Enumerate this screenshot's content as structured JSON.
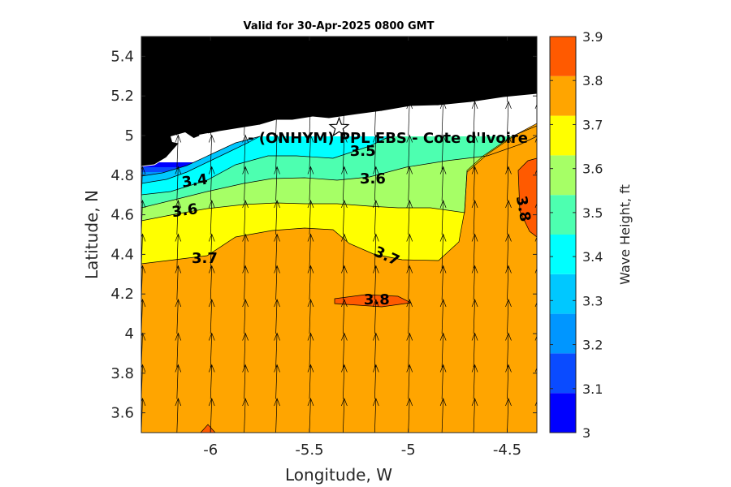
{
  "chart_data": {
    "type": "contour",
    "title": "Valid for 30-Apr-2025 0800 GMT",
    "xlabel": "Longitude, W",
    "ylabel": "Latitude, N",
    "xlim": [
      -6.35,
      -4.35
    ],
    "ylim": [
      3.5,
      5.5
    ],
    "xticks": [
      -6,
      -5.5,
      -5,
      -4.5
    ],
    "xtick_labels": [
      "-6",
      "-5.5",
      "-5",
      "-4.5"
    ],
    "yticks": [
      3.6,
      3.8,
      4.0,
      4.2,
      4.4,
      4.6,
      4.8,
      5.0,
      5.2,
      5.4
    ],
    "ytick_labels": [
      "3.6",
      "3.8",
      "4",
      "4.2",
      "4.4",
      "4.6",
      "4.8",
      "5",
      "5.2",
      "5.4"
    ],
    "colorbar": {
      "label": "Wave Height, ft",
      "levels": [
        3.0,
        3.1,
        3.2,
        3.3,
        3.4,
        3.5,
        3.6,
        3.7,
        3.8,
        3.9
      ],
      "tick_labels": [
        "3",
        "3.1",
        "3.2",
        "3.3",
        "3.4",
        "3.5",
        "3.6",
        "3.7",
        "3.8",
        "3.9"
      ],
      "colors": [
        "#0000ff",
        "#0a4bff",
        "#0096ff",
        "#00c8ff",
        "#00ffff",
        "#4dffb0",
        "#a6ff66",
        "#ffff00",
        "#ffa500",
        "#ff5a00"
      ]
    },
    "land_color": "#000000",
    "site": {
      "name": "(ONHYM) PPL EBS  - Cote d'Ivoire",
      "display_name": "- (ONHYM) PPL EBS  - Cote d'Ivoire",
      "lon": -5.35,
      "lat": 5.04,
      "marker": "star"
    },
    "contour_labels": [
      {
        "text": "3.4",
        "lon": -6.08,
        "lat": 4.77,
        "angle": -8
      },
      {
        "text": "3.5",
        "lon": -5.23,
        "lat": 4.92,
        "angle": 0
      },
      {
        "text": "3.6",
        "lon": -5.18,
        "lat": 4.78,
        "angle": 0
      },
      {
        "text": "3.6",
        "lon": -6.13,
        "lat": 4.62,
        "angle": -8
      },
      {
        "text": "3.7",
        "lon": -6.03,
        "lat": 4.38,
        "angle": 0
      },
      {
        "text": "3.7",
        "lon": -5.11,
        "lat": 4.39,
        "angle": 25
      },
      {
        "text": "3.8",
        "lon": -5.16,
        "lat": 4.17,
        "angle": 0
      },
      {
        "text": "3.8",
        "lon": -4.42,
        "lat": 4.63,
        "angle": 80
      }
    ],
    "wave_direction": "northward (slightly east of north)",
    "arrow_grid": {
      "lons": [
        -6.35,
        -6.17,
        -6.0,
        -5.83,
        -5.67,
        -5.5,
        -5.33,
        -5.17,
        -5.0,
        -4.83,
        -4.67,
        -4.5,
        -4.35
      ],
      "lats": [
        3.5,
        3.67,
        3.83,
        4.0,
        4.17,
        4.33,
        4.5,
        4.67,
        4.83,
        5.0,
        5.17
      ]
    }
  }
}
